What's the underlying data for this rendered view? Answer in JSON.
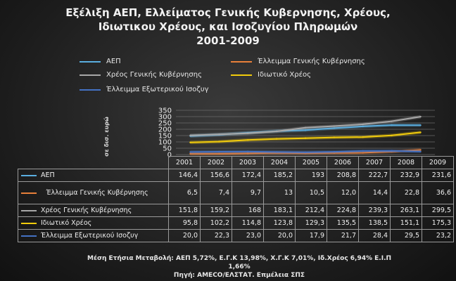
{
  "title_lines": [
    "Εξέλιξη ΑΕΠ,  Ελλείματος Γενικής Κυβερνησης, Χρέους,",
    "Ιδιωτικου Χρέους, και Ισοζυγίου Πληρωμών",
    "2001-2009"
  ],
  "footer": {
    "line1": "Μέση Ετήσια Μεταβολή: ΑΕΠ 5,72%, Ε.Γ.Κ 13,98%, Χ.Γ.Κ 7,01%, Ιδ.Χρέος 6,94% Ε.Ι.Π",
    "line2": "1,66%",
    "line3": "Πηγή: AMECO/ΕΛΣΤΑΤ. Επμέλεια ΣΠΣ"
  },
  "chart_data": {
    "type": "line",
    "title": "Εξέλιξη ΑΕΠ,  Ελλείματος Γενικής Κυβερνησης, Χρέους, Ιδιωτικου Χρέους, και Ισοζυγίου Πληρωμών 2001-2009",
    "ylabel": "σε δισ. ευρώ",
    "xlabel": "",
    "ylim": [
      0,
      350
    ],
    "yticks": [
      "0",
      "50",
      "100",
      "150",
      "200",
      "250",
      "300",
      "350"
    ],
    "grid": true,
    "legend_position": "top",
    "categories": [
      "2001",
      "2002",
      "2003",
      "2004",
      "2005",
      "2006",
      "2007",
      "2008",
      "2009"
    ],
    "series": [
      {
        "name": "ΑΕΠ",
        "color": "#5aaee0",
        "values": [
          146.4,
          156.6,
          172.4,
          185.2,
          193,
          208.8,
          222.7,
          232.9,
          231.6
        ],
        "labels": [
          "146,4",
          "156,6",
          "172,4",
          "185,2",
          "193",
          "208,8",
          "222,7",
          "232,9",
          "231,6"
        ]
      },
      {
        "name": "Έλλειμμα Γενικής Κυβέρνησης",
        "color": "#e8803a",
        "values": [
          6.5,
          7.4,
          9.7,
          13,
          10.5,
          12.0,
          14.4,
          22.8,
          36.6
        ],
        "labels": [
          "6,5",
          "7,4",
          "9,7",
          "13",
          "10,5",
          "12,0",
          "14,4",
          "22,8",
          "36,6"
        ]
      },
      {
        "name": "Χρέος Γενικής Κυβέρνησης",
        "color": "#a8a8a8",
        "values": [
          151.8,
          159.2,
          168,
          183.1,
          212.4,
          224.8,
          239.3,
          263.1,
          299.5
        ],
        "labels": [
          "151,8",
          "159,2",
          "168",
          "183,1",
          "212,4",
          "224,8",
          "239,3",
          "263,1",
          "299,5"
        ]
      },
      {
        "name": "Ιδιωτικό Χρέος",
        "color": "#f2cc0c",
        "values": [
          95.8,
          102.2,
          114.8,
          123.8,
          129.3,
          135.5,
          138.5,
          151.1,
          175.3
        ],
        "labels": [
          "95,8",
          "102,2",
          "114,8",
          "123,8",
          "129,3",
          "135,5",
          "138,5",
          "151,1",
          "175,3"
        ]
      },
      {
        "name": "Έλλειμμα Εξωτερικού  Ισοζυγ",
        "color": "#4472c4",
        "values": [
          20.0,
          22.3,
          23.0,
          20.0,
          17.9,
          21.7,
          28.4,
          29.5,
          23.2
        ],
        "labels": [
          "20,0",
          "22,3",
          "23,0",
          "20,0",
          "17,9",
          "21,7",
          "28,4",
          "29,5",
          "23,2"
        ]
      }
    ],
    "table_row_labels": [
      "ΑΕΠ",
      "Έλλειμμα Γενικής Κυβέρνησης",
      "Χρέος Γενικής Κυβέρνησης",
      "Ιδιωτικό Χρέος",
      "Έλλειμμα Εξωτερικού  Ισοζυγ"
    ]
  }
}
